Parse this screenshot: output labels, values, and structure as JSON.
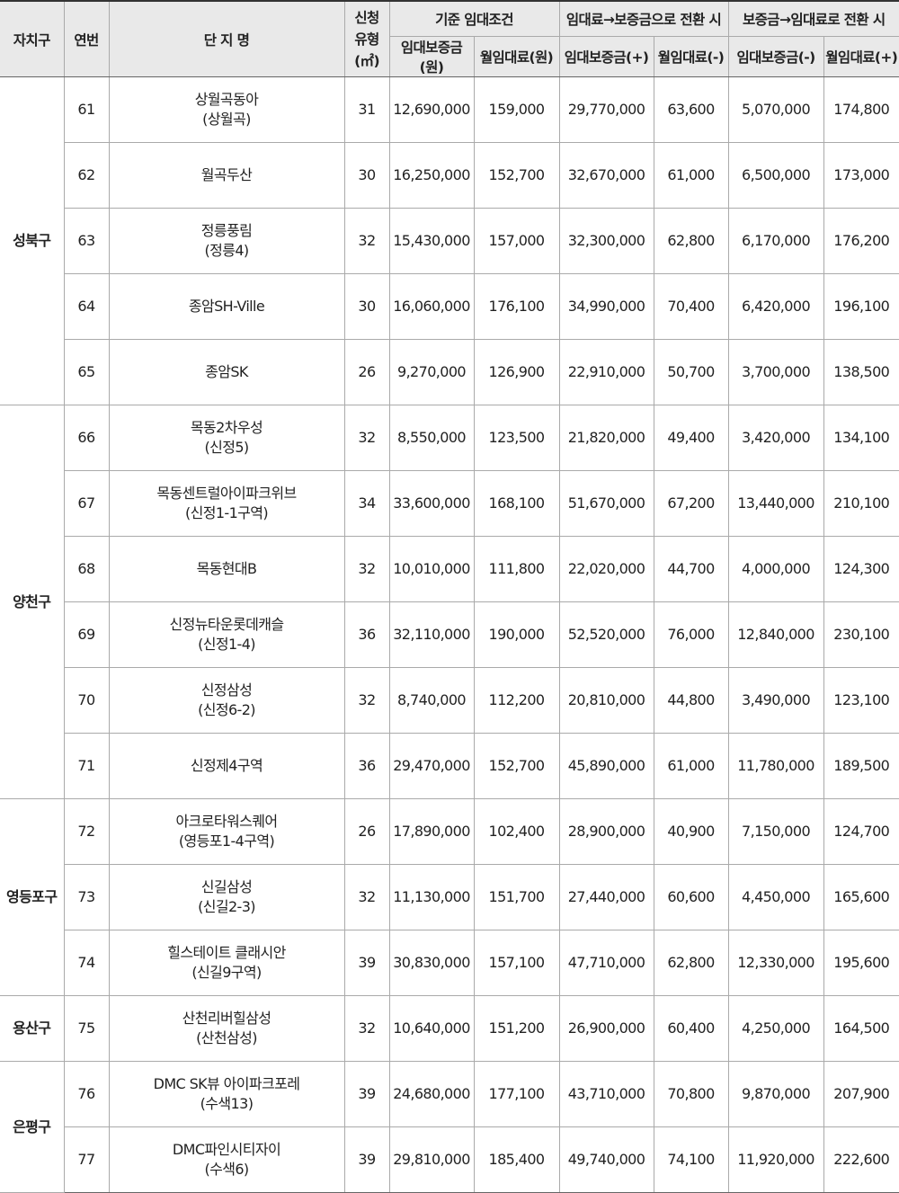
{
  "header": {
    "district": "자치구",
    "number": "연번",
    "complex_name": "단 지 명",
    "type": "신청\n유형\n(㎡)",
    "group_base": "기준 임대조건",
    "group_to_deposit": "임대료→보증금으로 전환 시",
    "group_to_rent": "보증금→임대료로 전환 시",
    "base_deposit": "임대보증금(원)",
    "base_rent": "월임대료(원)",
    "conv1_deposit": "임대보증금(+)",
    "conv1_rent": "월임대료(-)",
    "conv2_deposit": "임대보증금(-)",
    "conv2_rent": "월임대료(+)"
  },
  "groups": [
    {
      "district": "성북구",
      "rows": [
        {
          "no": "61",
          "name": "상월곡동아\n(상월곡)",
          "type": "31",
          "base_deposit": "12,690,000",
          "base_rent": "159,000",
          "c1_deposit": "29,770,000",
          "c1_rent": "63,600",
          "c2_deposit": "5,070,000",
          "c2_rent": "174,800"
        },
        {
          "no": "62",
          "name": "월곡두산",
          "type": "30",
          "base_deposit": "16,250,000",
          "base_rent": "152,700",
          "c1_deposit": "32,670,000",
          "c1_rent": "61,000",
          "c2_deposit": "6,500,000",
          "c2_rent": "173,000"
        },
        {
          "no": "63",
          "name": "정릉풍림\n(정릉4)",
          "type": "32",
          "base_deposit": "15,430,000",
          "base_rent": "157,000",
          "c1_deposit": "32,300,000",
          "c1_rent": "62,800",
          "c2_deposit": "6,170,000",
          "c2_rent": "176,200"
        },
        {
          "no": "64",
          "name": "종암SH-Ville",
          "type": "30",
          "base_deposit": "16,060,000",
          "base_rent": "176,100",
          "c1_deposit": "34,990,000",
          "c1_rent": "70,400",
          "c2_deposit": "6,420,000",
          "c2_rent": "196,100"
        },
        {
          "no": "65",
          "name": "종암SK",
          "type": "26",
          "base_deposit": "9,270,000",
          "base_rent": "126,900",
          "c1_deposit": "22,910,000",
          "c1_rent": "50,700",
          "c2_deposit": "3,700,000",
          "c2_rent": "138,500"
        }
      ]
    },
    {
      "district": "양천구",
      "rows": [
        {
          "no": "66",
          "name": "목동2차우성\n(신정5)",
          "type": "32",
          "base_deposit": "8,550,000",
          "base_rent": "123,500",
          "c1_deposit": "21,820,000",
          "c1_rent": "49,400",
          "c2_deposit": "3,420,000",
          "c2_rent": "134,100"
        },
        {
          "no": "67",
          "name": "목동센트럴아이파크위브\n(신정1-1구역)",
          "type": "34",
          "base_deposit": "33,600,000",
          "base_rent": "168,100",
          "c1_deposit": "51,670,000",
          "c1_rent": "67,200",
          "c2_deposit": "13,440,000",
          "c2_rent": "210,100"
        },
        {
          "no": "68",
          "name": "목동현대B",
          "type": "32",
          "base_deposit": "10,010,000",
          "base_rent": "111,800",
          "c1_deposit": "22,020,000",
          "c1_rent": "44,700",
          "c2_deposit": "4,000,000",
          "c2_rent": "124,300"
        },
        {
          "no": "69",
          "name": "신정뉴타운롯데캐슬\n(신정1-4)",
          "type": "36",
          "base_deposit": "32,110,000",
          "base_rent": "190,000",
          "c1_deposit": "52,520,000",
          "c1_rent": "76,000",
          "c2_deposit": "12,840,000",
          "c2_rent": "230,100"
        },
        {
          "no": "70",
          "name": "신정삼성\n(신정6-2)",
          "type": "32",
          "base_deposit": "8,740,000",
          "base_rent": "112,200",
          "c1_deposit": "20,810,000",
          "c1_rent": "44,800",
          "c2_deposit": "3,490,000",
          "c2_rent": "123,100"
        },
        {
          "no": "71",
          "name": "신정제4구역",
          "type": "36",
          "base_deposit": "29,470,000",
          "base_rent": "152,700",
          "c1_deposit": "45,890,000",
          "c1_rent": "61,000",
          "c2_deposit": "11,780,000",
          "c2_rent": "189,500"
        }
      ]
    },
    {
      "district": "영등포구",
      "rows": [
        {
          "no": "72",
          "name": "아크로타워스퀘어\n(영등포1-4구역)",
          "type": "26",
          "base_deposit": "17,890,000",
          "base_rent": "102,400",
          "c1_deposit": "28,900,000",
          "c1_rent": "40,900",
          "c2_deposit": "7,150,000",
          "c2_rent": "124,700"
        },
        {
          "no": "73",
          "name": "신길삼성\n(신길2-3)",
          "type": "32",
          "base_deposit": "11,130,000",
          "base_rent": "151,700",
          "c1_deposit": "27,440,000",
          "c1_rent": "60,600",
          "c2_deposit": "4,450,000",
          "c2_rent": "165,600"
        },
        {
          "no": "74",
          "name": "힐스테이트 클래시안\n(신길9구역)",
          "type": "39",
          "base_deposit": "30,830,000",
          "base_rent": "157,100",
          "c1_deposit": "47,710,000",
          "c1_rent": "62,800",
          "c2_deposit": "12,330,000",
          "c2_rent": "195,600"
        }
      ]
    },
    {
      "district": "용산구",
      "rows": [
        {
          "no": "75",
          "name": "산천리버힐삼성\n(산천삼성)",
          "type": "32",
          "base_deposit": "10,640,000",
          "base_rent": "151,200",
          "c1_deposit": "26,900,000",
          "c1_rent": "60,400",
          "c2_deposit": "4,250,000",
          "c2_rent": "164,500"
        }
      ]
    },
    {
      "district": "은평구",
      "rows": [
        {
          "no": "76",
          "name": "DMC SK뷰 아이파크포레\n(수색13)",
          "type": "39",
          "base_deposit": "24,680,000",
          "base_rent": "177,100",
          "c1_deposit": "43,710,000",
          "c1_rent": "70,800",
          "c2_deposit": "9,870,000",
          "c2_rent": "207,900"
        },
        {
          "no": "77",
          "name": "DMC파인시티자이\n(수색6)",
          "type": "39",
          "base_deposit": "29,810,000",
          "base_rent": "185,400",
          "c1_deposit": "49,740,000",
          "c1_rent": "74,100",
          "c2_deposit": "11,920,000",
          "c2_rent": "222,600"
        }
      ]
    }
  ]
}
